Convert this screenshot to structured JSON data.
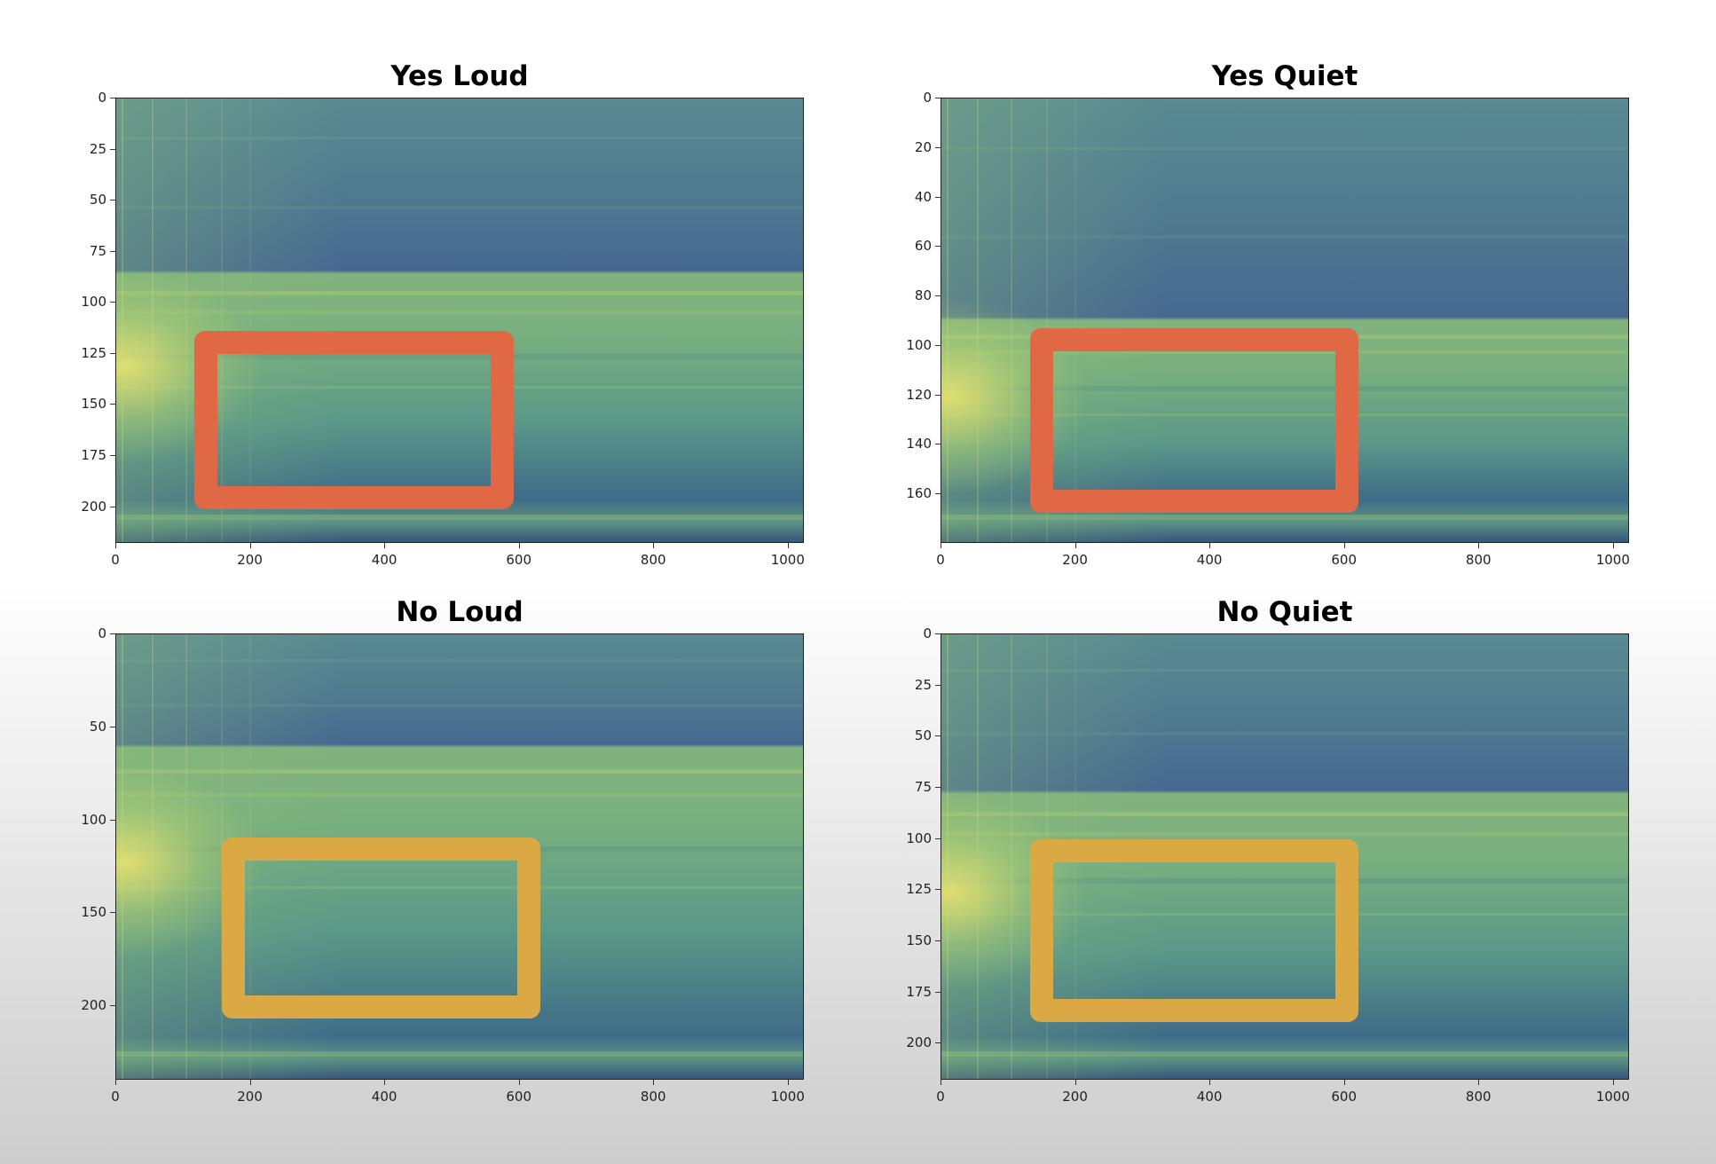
{
  "chart_data": [
    {
      "type": "heatmap",
      "title": "Yes Loud",
      "xlim": [
        0,
        1024
      ],
      "ylim": [
        218,
        0
      ],
      "x_ticks": [
        "0",
        "200",
        "400",
        "600",
        "800",
        "1000"
      ],
      "y_ticks": [
        "0",
        "25",
        "50",
        "75",
        "100",
        "125",
        "150",
        "175",
        "200"
      ],
      "highlight": {
        "x_range": [
          135,
          575
        ],
        "y_range": [
          120,
          196
        ],
        "color": "#e06844"
      },
      "split_row": 85
    },
    {
      "type": "heatmap",
      "title": "Yes Quiet",
      "xlim": [
        0,
        1024
      ],
      "ylim": [
        180,
        0
      ],
      "x_ticks": [
        "0",
        "200",
        "400",
        "600",
        "800",
        "1000"
      ],
      "y_ticks": [
        "0",
        "20",
        "40",
        "60",
        "80",
        "100",
        "120",
        "140",
        "160"
      ],
      "highlight": {
        "x_range": [
          150,
          605
        ],
        "y_range": [
          98,
          163
        ],
        "color": "#e06844"
      },
      "split_row": 89
    },
    {
      "type": "heatmap",
      "title": "No Loud",
      "xlim": [
        0,
        1024
      ],
      "ylim": [
        240,
        0
      ],
      "x_ticks": [
        "0",
        "200",
        "400",
        "600",
        "800",
        "1000"
      ],
      "y_ticks": [
        "0",
        "50",
        "100",
        "150",
        "200"
      ],
      "highlight": {
        "x_range": [
          175,
          615
        ],
        "y_range": [
          116,
          201
        ],
        "color": "#dba944"
      },
      "split_row": 60
    },
    {
      "type": "heatmap",
      "title": "No Quiet",
      "xlim": [
        0,
        1024
      ],
      "ylim": [
        218,
        0
      ],
      "x_ticks": [
        "0",
        "200",
        "400",
        "600",
        "800",
        "1000"
      ],
      "y_ticks": [
        "0",
        "25",
        "50",
        "75",
        "100",
        "125",
        "150",
        "175",
        "200"
      ],
      "highlight": {
        "x_range": [
          150,
          605
        ],
        "y_range": [
          106,
          184
        ],
        "color": "#dba944"
      },
      "split_row": 77
    }
  ]
}
